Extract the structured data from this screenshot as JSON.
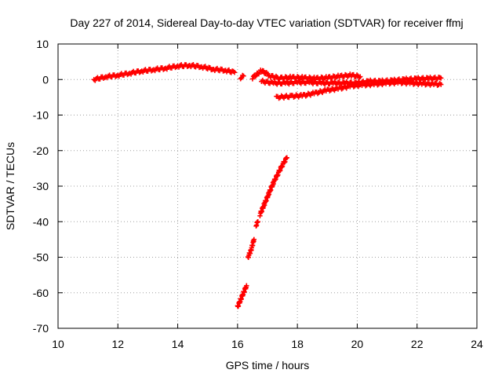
{
  "chart_data": {
    "type": "scatter",
    "title": "Day 227 of 2014, Sidereal Day-to-day VTEC variation (SDTVAR) for receiver ffmj",
    "xlabel": "GPS time / hours",
    "ylabel": "SDTVAR / TECUs",
    "xlim": [
      10,
      24
    ],
    "ylim": [
      -70,
      10
    ],
    "xticks": [
      10,
      12,
      14,
      16,
      18,
      20,
      22,
      24
    ],
    "yticks": [
      10,
      0,
      -10,
      -20,
      -30,
      -40,
      -50,
      -60,
      -70
    ],
    "grid": true,
    "marker": "plus",
    "color": "#ff0000",
    "series": [
      {
        "x": [
          11.2,
          11.6,
          12.0,
          12.4,
          12.8,
          13.2,
          13.6,
          14.0,
          14.4,
          14.8,
          15.2,
          15.6,
          15.9
        ],
        "y": [
          0.0,
          0.8,
          1.2,
          1.8,
          2.4,
          2.8,
          3.2,
          3.8,
          4.0,
          3.6,
          2.9,
          2.6,
          2.0
        ]
      },
      {
        "x": [
          16.1,
          16.2
        ],
        "y": [
          0.5,
          1.0
        ]
      },
      {
        "x": [
          16.5,
          16.8,
          17.1,
          17.4,
          17.8,
          18.2,
          18.6,
          19.0,
          19.4,
          19.8,
          20.1
        ],
        "y": [
          0.5,
          2.5,
          1.0,
          0.4,
          0.6,
          0.5,
          0.3,
          0.5,
          0.9,
          1.2,
          0.8
        ]
      },
      {
        "x": [
          16.8,
          17.2,
          17.6,
          18.0,
          18.4,
          18.8,
          19.2,
          19.6,
          20.0,
          20.4,
          20.8,
          21.2,
          21.6,
          22.0,
          22.4,
          22.8
        ],
        "y": [
          -0.5,
          -1.0,
          -1.0,
          -0.8,
          -0.8,
          -1.0,
          -1.0,
          -1.0,
          -1.0,
          -0.5,
          -0.5,
          -0.3,
          0.0,
          0.2,
          0.3,
          0.4
        ]
      },
      {
        "x": [
          17.3,
          17.8,
          18.2,
          18.6,
          19.0,
          19.4,
          19.8,
          20.2,
          20.6,
          21.0,
          21.4,
          21.8,
          22.2,
          22.6,
          22.8
        ],
        "y": [
          -5.0,
          -4.7,
          -4.5,
          -3.8,
          -3.0,
          -2.5,
          -1.8,
          -1.5,
          -1.3,
          -1.0,
          -0.8,
          -1.0,
          -1.2,
          -1.3,
          -1.4
        ]
      },
      {
        "x": [
          16.0,
          16.1,
          16.2,
          16.3
        ],
        "y": [
          -64.0,
          -62.0,
          -60.0,
          -58.0
        ]
      },
      {
        "x": [
          16.35,
          16.45,
          16.55
        ],
        "y": [
          -50.0,
          -48.0,
          -45.0
        ]
      },
      {
        "x": [
          16.62,
          16.68
        ],
        "y": [
          -41.0,
          -40.0
        ]
      },
      {
        "x": [
          16.75,
          16.9,
          17.05,
          17.2,
          17.35,
          17.5,
          17.65
        ],
        "y": [
          -38.0,
          -35.0,
          -32.0,
          -29.0,
          -26.5,
          -24.0,
          -22.0
        ]
      }
    ]
  }
}
